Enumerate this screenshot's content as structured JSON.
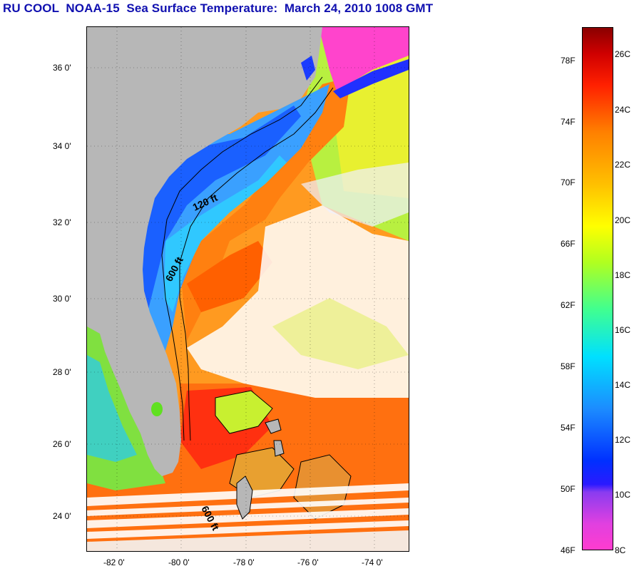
{
  "title": "RU COOL  NOAA-15  Sea Surface Temperature:  March 24, 2010 1008 GMT",
  "map": {
    "latitude_labels": [
      "36 0'",
      "34 0'",
      "32 0'",
      "30 0'",
      "28 0'",
      "26 0'",
      "24 0'"
    ],
    "longitude_labels": [
      "-82 0'",
      "-80 0'",
      "-78 0'",
      "-76 0'",
      "-74 0'"
    ],
    "contour_labels": [
      "120 ft",
      "600 ft",
      "600 ft"
    ]
  },
  "colorbar": {
    "fahrenheit_labels": [
      "78F",
      "74F",
      "70F",
      "66F",
      "62F",
      "58F",
      "54F",
      "50F",
      "46F"
    ],
    "celsius_labels": [
      "26C",
      "24C",
      "22C",
      "20C",
      "18C",
      "16C",
      "14C",
      "12C",
      "10C",
      "8C"
    ]
  },
  "colors": {
    "title": "#1010b0",
    "land": "#b7b7b7",
    "cloud": "#ffffff"
  }
}
